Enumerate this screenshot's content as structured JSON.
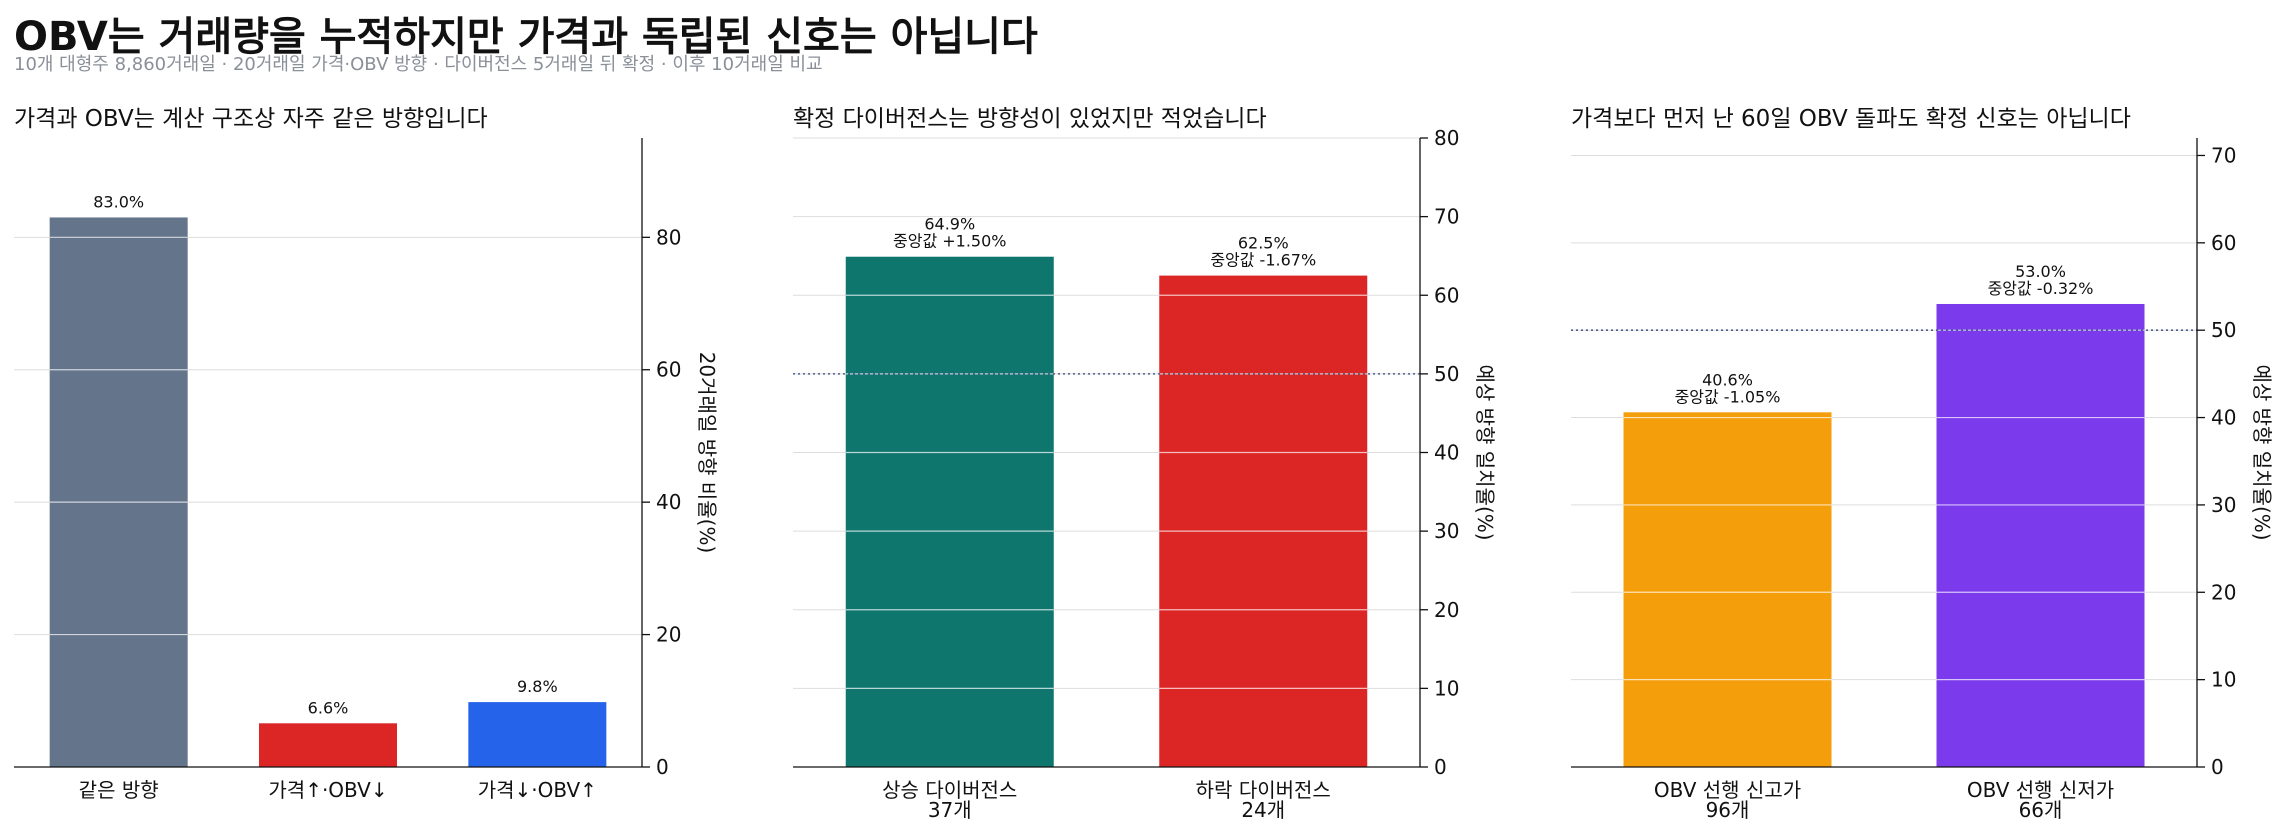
{
  "title": "OBV는 거래량을 누적하지만 가격과 독립된 신호는 아닙니다",
  "subtitle": "10개 대형주 8,860거래일 · 20거래일 가격·OBV 방향 · 다이버전스 5거래일 뒤 확정 · 이후 10거래일 비교",
  "colors": {
    "slate": "#64748b",
    "red": "#dc2626",
    "blue": "#2563eb",
    "teal": "#0f766e",
    "orange": "#f59e0b",
    "purple": "#7c3aed",
    "reference_line": "#4b5d8a",
    "grid": "#dddddd",
    "axis": "#111111"
  },
  "chart_data": [
    {
      "type": "bar",
      "title": "가격과 OBV는 계산 구조상 자주 같은 방향입니다",
      "ylabel": "20거래일 방향 비율(%)",
      "ylim": [
        0,
        95
      ],
      "yticks": [
        0,
        20,
        40,
        60,
        80
      ],
      "grid": true,
      "y_axis_side": "right",
      "reference_line": null,
      "categories": [
        [
          "같은 방향"
        ],
        [
          "가격↑·OBV↓"
        ],
        [
          "가격↓·OBV↑"
        ]
      ],
      "values": [
        83.0,
        6.6,
        9.8
      ],
      "data_labels": [
        [
          "83.0%"
        ],
        [
          "6.6%"
        ],
        [
          "9.8%"
        ]
      ],
      "bar_colors": [
        "slate",
        "red",
        "blue"
      ]
    },
    {
      "type": "bar",
      "title": "확정 다이버전스는 방향성이 있었지만 적었습니다",
      "ylabel": "예상 방향 일치율(%)",
      "ylim": [
        0,
        80
      ],
      "yticks": [
        0,
        10,
        20,
        30,
        40,
        50,
        60,
        70,
        80
      ],
      "grid": true,
      "y_axis_side": "right",
      "reference_line": 50,
      "categories": [
        [
          "상승 다이버전스",
          "37개"
        ],
        [
          "하락 다이버전스",
          "24개"
        ]
      ],
      "values": [
        64.9,
        62.5
      ],
      "data_labels": [
        [
          "64.9%",
          "중앙값 +1.50%"
        ],
        [
          "62.5%",
          "중앙값 -1.67%"
        ]
      ],
      "bar_colors": [
        "teal",
        "red"
      ]
    },
    {
      "type": "bar",
      "title": "가격보다 먼저 난 60일 OBV 돌파도 확정 신호는 아닙니다",
      "ylabel": "예상 방향 일치율(%)",
      "ylim": [
        0,
        72
      ],
      "yticks": [
        0,
        10,
        20,
        30,
        40,
        50,
        60,
        70
      ],
      "grid": true,
      "y_axis_side": "right",
      "reference_line": 50,
      "categories": [
        [
          "OBV 선행 신고가",
          "96개"
        ],
        [
          "OBV 선행 신저가",
          "66개"
        ]
      ],
      "values": [
        40.6,
        53.0
      ],
      "data_labels": [
        [
          "40.6%",
          "중앙값 -1.05%"
        ],
        [
          "53.0%",
          "중앙값 -0.32%"
        ]
      ],
      "bar_colors": [
        "orange",
        "purple"
      ]
    }
  ]
}
